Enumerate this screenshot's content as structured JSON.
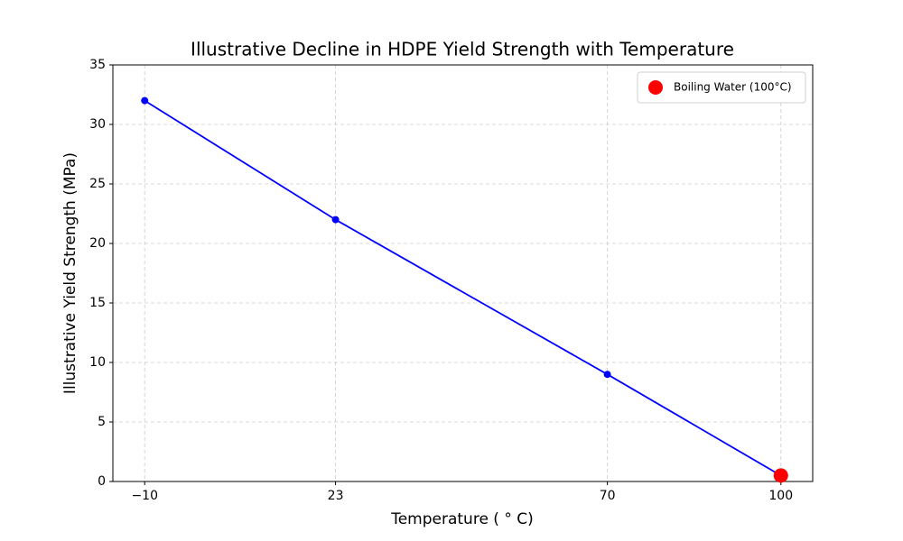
{
  "chart_data": {
    "type": "line",
    "title": "Illustrative Decline in HDPE Yield Strength with Temperature",
    "x_label": "Temperature ( ° C)",
    "y_label": "Illustrative Yield Strength (MPa)",
    "series": [
      {
        "color": "#0000ff",
        "x": [
          -10,
          23,
          70,
          100
        ],
        "values": [
          32,
          22,
          9,
          0.5
        ]
      },
      {
        "name": "Boiling Water (100°C)",
        "color": "#ff0000",
        "style": "scatter",
        "x": [
          100
        ],
        "values": [
          0.5
        ]
      }
    ],
    "xlim": [
      -15.5,
      105.5
    ],
    "xticks": [
      {
        "value": -10,
        "label": "−10"
      },
      23,
      70,
      100
    ],
    "ylim": [
      0,
      35
    ],
    "yticks": [
      0,
      5,
      10,
      15,
      20,
      25,
      30,
      35
    ],
    "grid": true,
    "legend": "upper right"
  }
}
